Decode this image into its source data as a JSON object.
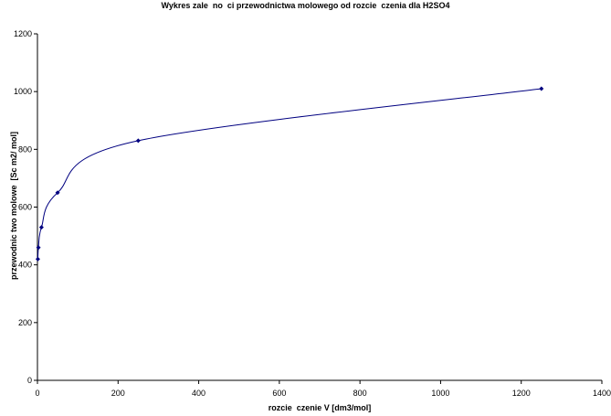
{
  "chart_data": {
    "type": "scatter",
    "title": "Wykres zale  no  ci przewodnictwa molowego od rozcie  czenia dla H2SO4",
    "xlabel": "rozcie  czenie V [dm3/mol]",
    "ylabel": "przewodnic two molowe  [Sc m2/ mol]",
    "xlim": [
      0,
      1400
    ],
    "ylim": [
      0,
      1200
    ],
    "x_ticks": [
      "0",
      "200",
      "400",
      "600",
      "800",
      "1000",
      "1200",
      "1400"
    ],
    "y_ticks": [
      "0",
      "200",
      "400",
      "600",
      "800",
      "1000",
      "1200"
    ],
    "grid": false,
    "legend": "none",
    "series": [
      {
        "x": [
          1,
          2.5,
          10,
          50,
          250,
          1250
        ],
        "y": [
          420,
          460,
          530,
          650,
          830,
          1010
        ],
        "smooth_line": true,
        "color": "#000080"
      }
    ]
  }
}
